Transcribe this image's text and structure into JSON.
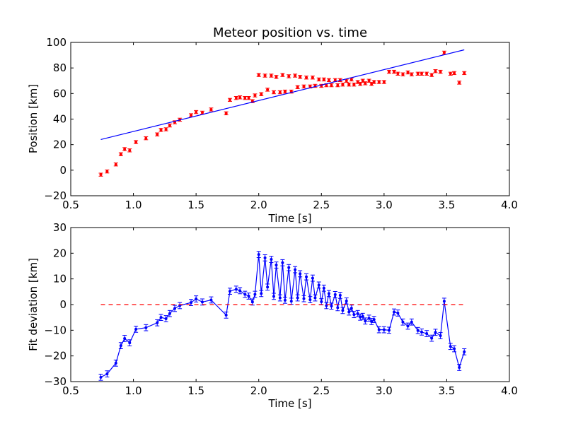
{
  "chart_data": [
    {
      "type": "scatter",
      "title": "Meteor position vs. time",
      "xlabel": "Time [s]",
      "ylabel": "Position [km]",
      "xlim": [
        0.5,
        4.0
      ],
      "ylim": [
        -20,
        100
      ],
      "xticks": [
        "0.5",
        "1.0",
        "1.5",
        "2.0",
        "2.5",
        "3.0",
        "3.5",
        "4.0"
      ],
      "yticks": [
        "−20",
        "0",
        "20",
        "40",
        "60",
        "80",
        "100"
      ],
      "grid": false,
      "series": [
        {
          "marker": "point with error bars",
          "color": "#ff0000",
          "error": 1.2,
          "x": [
            0.74,
            0.79,
            0.86,
            0.9,
            0.93,
            0.97,
            1.02,
            1.1,
            1.19,
            1.22,
            1.26,
            1.29,
            1.33,
            1.37,
            1.46,
            1.5,
            1.55,
            1.62,
            1.74,
            1.77,
            1.82,
            1.85,
            1.89,
            1.92,
            1.95,
            1.97,
            2.0,
            2.02,
            2.05,
            2.07,
            2.1,
            2.12,
            2.14,
            2.17,
            2.19,
            2.21,
            2.24,
            2.26,
            2.29,
            2.31,
            2.33,
            2.36,
            2.38,
            2.41,
            2.43,
            2.45,
            2.48,
            2.5,
            2.52,
            2.54,
            2.56,
            2.58,
            2.61,
            2.63,
            2.65,
            2.67,
            2.7,
            2.72,
            2.74,
            2.76,
            2.79,
            2.81,
            2.83,
            2.85,
            2.88,
            2.9,
            2.92,
            2.96,
            3.0,
            3.04,
            3.08,
            3.11,
            3.15,
            3.19,
            3.22,
            3.27,
            3.3,
            3.34,
            3.38,
            3.41,
            3.45,
            3.48,
            3.53,
            3.56,
            3.6,
            3.64
          ],
          "y": [
            -3.5,
            -1,
            4.5,
            12.5,
            16.5,
            15.5,
            22,
            25,
            28,
            31.5,
            32,
            35,
            37.5,
            39.5,
            43,
            45.5,
            45,
            47.5,
            44.5,
            55,
            56.5,
            57,
            56.5,
            56.5,
            54,
            58.5,
            74.5,
            59.5,
            74,
            63,
            74,
            61,
            73,
            61,
            74.5,
            61.5,
            73.5,
            61.5,
            74,
            65,
            73,
            65.5,
            72.5,
            65.5,
            72.5,
            66,
            71,
            66,
            71,
            66.5,
            70.5,
            66.5,
            70.5,
            66.5,
            70.5,
            67,
            70,
            67,
            71,
            67,
            69,
            67.5,
            70,
            68,
            70,
            67.5,
            69,
            69,
            69,
            77,
            77,
            75.5,
            75,
            76.5,
            75,
            75.5,
            75.5,
            75.5,
            74.5,
            77.5,
            77,
            92,
            75.5,
            76,
            68.5,
            76
          ]
        },
        {
          "marker": "line",
          "color": "#0000ff",
          "x": [
            0.74,
            3.64
          ],
          "y": [
            24,
            94.2
          ]
        }
      ]
    },
    {
      "type": "line",
      "title": "",
      "xlabel": "Time [s]",
      "ylabel": "Fit deviation [km]",
      "xlim": [
        0.5,
        4.0
      ],
      "ylim": [
        -30,
        30
      ],
      "xticks": [
        "0.5",
        "1.0",
        "1.5",
        "2.0",
        "2.5",
        "3.0",
        "3.5",
        "4.0"
      ],
      "yticks": [
        "−30",
        "−20",
        "−10",
        "0",
        "10",
        "20",
        "30"
      ],
      "grid": false,
      "series": [
        {
          "marker": "line with points and error bars",
          "color": "#0000ff",
          "error": 1.2,
          "x": [
            0.74,
            0.79,
            0.86,
            0.9,
            0.93,
            0.97,
            1.02,
            1.1,
            1.19,
            1.22,
            1.26,
            1.29,
            1.33,
            1.37,
            1.46,
            1.5,
            1.55,
            1.62,
            1.74,
            1.77,
            1.82,
            1.85,
            1.89,
            1.92,
            1.95,
            1.97,
            2.0,
            2.02,
            2.05,
            2.07,
            2.1,
            2.12,
            2.14,
            2.17,
            2.19,
            2.21,
            2.24,
            2.26,
            2.29,
            2.31,
            2.33,
            2.36,
            2.38,
            2.41,
            2.43,
            2.45,
            2.48,
            2.5,
            2.52,
            2.54,
            2.56,
            2.58,
            2.61,
            2.63,
            2.65,
            2.67,
            2.7,
            2.72,
            2.74,
            2.76,
            2.79,
            2.81,
            2.83,
            2.85,
            2.88,
            2.9,
            2.92,
            2.96,
            3.0,
            3.04,
            3.08,
            3.11,
            3.15,
            3.19,
            3.22,
            3.27,
            3.3,
            3.34,
            3.38,
            3.41,
            3.45,
            3.48,
            3.53,
            3.56,
            3.6,
            3.64
          ],
          "y": [
            -28.3,
            -27,
            -22.8,
            -16,
            -13.2,
            -14.9,
            -9.6,
            -9,
            -7.1,
            -5,
            -5.5,
            -3.5,
            -1.5,
            -0.4,
            0.8,
            2.2,
            1,
            1.8,
            -4.1,
            5.2,
            6,
            5.4,
            4,
            3.3,
            1,
            4,
            19.5,
            4.3,
            18.2,
            6.8,
            17.6,
            3.2,
            15.4,
            2.6,
            16.3,
            1.7,
            14.4,
            1.3,
            13.6,
            2.6,
            12,
            2.3,
            10.8,
            1.9,
            10.3,
            2.6,
            7.6,
            1.1,
            6.4,
            -0.4,
            4.3,
            -0.6,
            3.9,
            -1.2,
            3.6,
            -2.3,
            1.4,
            -2.9,
            -1.4,
            -3.9,
            -3.5,
            -4.9,
            -4.6,
            -6.4,
            -5.3,
            -6.6,
            -5.8,
            -9.8,
            -9.8,
            -10,
            -2.9,
            -3.3,
            -6.8,
            -8.4,
            -6.8,
            -10.1,
            -10.7,
            -11.3,
            -13.1,
            -10.8,
            -12.1,
            1.3,
            -16.3,
            -17.2,
            -24.5,
            -18.4
          ]
        },
        {
          "marker": "dashed line",
          "color": "#ff0000",
          "x": [
            0.74,
            3.64
          ],
          "y": [
            0,
            0
          ]
        }
      ]
    }
  ]
}
